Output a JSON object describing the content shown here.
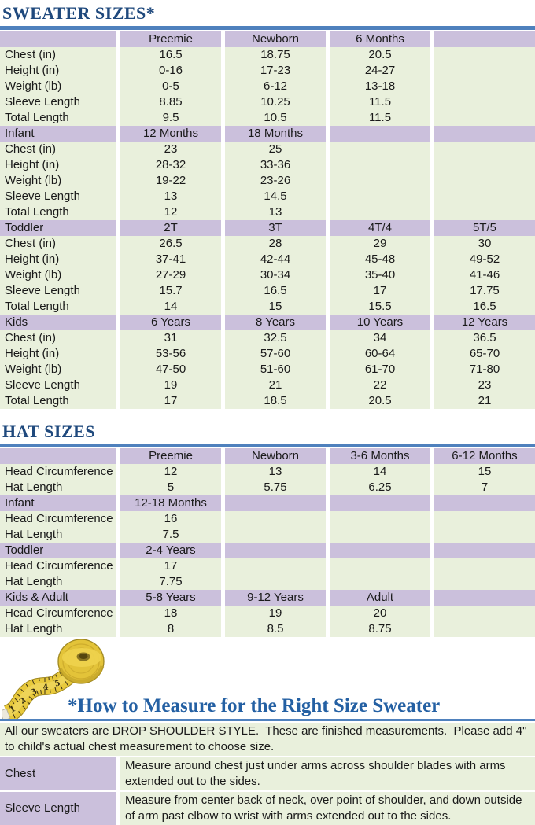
{
  "titles": {
    "sweater": "SWEATER SIZES*",
    "hat": "HAT SIZES",
    "measure": "*How to Measure for the Right Size Sweater"
  },
  "colors": {
    "title_blue": "#1F497D",
    "heading_blue": "#2460A3",
    "rule_blue": "#4F81BD",
    "band_purple": "#CBC0DC",
    "cell_green": "#E9F0DC",
    "text_dark": "#1a1a1a",
    "tape_yellow": "#E3C339"
  },
  "icons": {
    "tape": "measuring-tape"
  },
  "sweater_table": {
    "rows": [
      {
        "band": true,
        "cells": [
          "",
          "Preemie",
          "Newborn",
          "6 Months",
          ""
        ]
      },
      {
        "band": false,
        "cells": [
          "Chest (in)",
          "16.5",
          "18.75",
          "20.5",
          ""
        ]
      },
      {
        "band": false,
        "cells": [
          "Height (in)",
          "0-16",
          "17-23",
          "24-27",
          ""
        ]
      },
      {
        "band": false,
        "cells": [
          "Weight (lb)",
          "0-5",
          "6-12",
          "13-18",
          ""
        ]
      },
      {
        "band": false,
        "cells": [
          "Sleeve Length",
          "8.85",
          "10.25",
          "11.5",
          ""
        ]
      },
      {
        "band": false,
        "cells": [
          "Total Length",
          "9.5",
          "10.5",
          "11.5",
          ""
        ]
      },
      {
        "band": true,
        "cells": [
          "Infant",
          "12 Months",
          "18 Months",
          "",
          ""
        ]
      },
      {
        "band": false,
        "cells": [
          "Chest (in)",
          "23",
          "25",
          "",
          ""
        ]
      },
      {
        "band": false,
        "cells": [
          "Height (in)",
          "28-32",
          "33-36",
          "",
          ""
        ]
      },
      {
        "band": false,
        "cells": [
          "Weight (lb)",
          "19-22",
          "23-26",
          "",
          ""
        ]
      },
      {
        "band": false,
        "cells": [
          "Sleeve Length",
          "13",
          "14.5",
          "",
          ""
        ]
      },
      {
        "band": false,
        "cells": [
          "Total Length",
          "12",
          "13",
          "",
          ""
        ]
      },
      {
        "band": true,
        "cells": [
          "Toddler",
          "2T",
          "3T",
          "4T/4",
          "5T/5"
        ]
      },
      {
        "band": false,
        "cells": [
          "Chest (in)",
          "26.5",
          "28",
          "29",
          "30"
        ]
      },
      {
        "band": false,
        "cells": [
          "Height (in)",
          "37-41",
          "42-44",
          "45-48",
          "49-52"
        ]
      },
      {
        "band": false,
        "cells": [
          "Weight (lb)",
          "27-29",
          "30-34",
          "35-40",
          "41-46"
        ]
      },
      {
        "band": false,
        "cells": [
          "Sleeve Length",
          "15.7",
          "16.5",
          "17",
          "17.75"
        ]
      },
      {
        "band": false,
        "cells": [
          "Total Length",
          "14",
          "15",
          "15.5",
          "16.5"
        ]
      },
      {
        "band": true,
        "cells": [
          "Kids",
          "6 Years",
          "8 Years",
          "10 Years",
          "12 Years"
        ]
      },
      {
        "band": false,
        "cells": [
          "Chest (in)",
          "31",
          "32.5",
          "34",
          "36.5"
        ]
      },
      {
        "band": false,
        "cells": [
          "Height (in)",
          "53-56",
          "57-60",
          "60-64",
          "65-70"
        ]
      },
      {
        "band": false,
        "cells": [
          "Weight (lb)",
          "47-50",
          "51-60",
          "61-70",
          "71-80"
        ]
      },
      {
        "band": false,
        "cells": [
          "Sleeve Length",
          "19",
          "21",
          "22",
          "23"
        ]
      },
      {
        "band": false,
        "cells": [
          "Total Length",
          "17",
          "18.5",
          "20.5",
          "21"
        ]
      }
    ]
  },
  "hat_table": {
    "rows": [
      {
        "band": true,
        "cells": [
          "",
          "Preemie",
          "Newborn",
          "3-6 Months",
          "6-12 Months"
        ]
      },
      {
        "band": false,
        "cells": [
          "Head Circumference",
          "12",
          "13",
          "14",
          "15"
        ]
      },
      {
        "band": false,
        "cells": [
          "Hat Length",
          "5",
          "5.75",
          "6.25",
          "7"
        ]
      },
      {
        "band": true,
        "cells": [
          "Infant",
          "12-18 Months",
          "",
          "",
          ""
        ]
      },
      {
        "band": false,
        "cells": [
          "Head Circumference",
          "16",
          "",
          "",
          ""
        ]
      },
      {
        "band": false,
        "cells": [
          "Hat Length",
          "7.5",
          "",
          "",
          ""
        ]
      },
      {
        "band": true,
        "cells": [
          "Toddler",
          "2-4 Years",
          "",
          "",
          ""
        ]
      },
      {
        "band": false,
        "cells": [
          "Head Circumference",
          "17",
          "",
          "",
          ""
        ]
      },
      {
        "band": false,
        "cells": [
          "Hat Length",
          "7.75",
          "",
          "",
          ""
        ]
      },
      {
        "band": true,
        "cells": [
          "Kids & Adult",
          "5-8 Years",
          "9-12 Years",
          "Adult",
          ""
        ]
      },
      {
        "band": false,
        "cells": [
          "Head Circumference",
          "18",
          "19",
          "20",
          ""
        ]
      },
      {
        "band": false,
        "cells": [
          "Hat Length",
          "8",
          "8.5",
          "8.75",
          ""
        ]
      }
    ]
  },
  "notes": {
    "intro": "All our sweaters are DROP SHOULDER STYLE.  These are finished measurements.  Please add 4\" to child's actual chest measurement to choose size.",
    "rows": [
      {
        "label": "Chest",
        "text": "Measure around chest just under arms across shoulder blades with arms extended out to the sides."
      },
      {
        "label": "Sleeve Length",
        "text": "Measure from center back of neck, over point of shoulder, and down outside of arm past elbow to wrist with arms extended out to the sides."
      }
    ]
  }
}
